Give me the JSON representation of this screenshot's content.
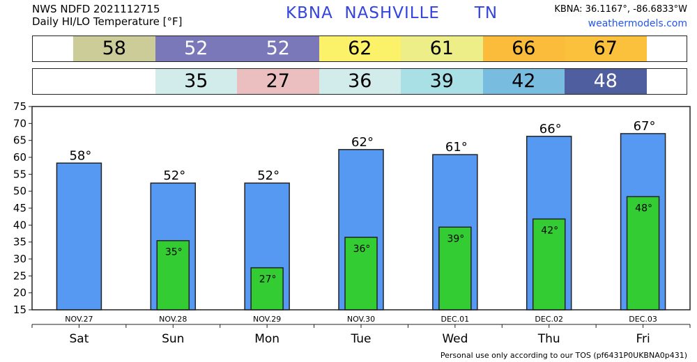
{
  "header": {
    "line1": "NWS NDFD 2021112715",
    "line2": "Daily HI/LO Temperature [°F]",
    "station": "KBNA  NASHVILLE      TN",
    "coords": "KBNA: 36.1167°, -86.6833°W",
    "site": "weathermodels.com"
  },
  "hi_strip": [
    {
      "value": "58",
      "color": "#cccc99"
    },
    {
      "value": "52",
      "color": "#7a78b8"
    },
    {
      "value": "52",
      "color": "#7a78b8"
    },
    {
      "value": "62",
      "color": "#fbf26a"
    },
    {
      "value": "61",
      "color": "#eeee88"
    },
    {
      "value": "66",
      "color": "#fbbc3c"
    },
    {
      "value": "67",
      "color": "#fbc03c"
    }
  ],
  "lo_strip": [
    {
      "value": "",
      "color": "#ffffff"
    },
    {
      "value": "35",
      "color": "#d2ecec"
    },
    {
      "value": "27",
      "color": "#ebbfbf"
    },
    {
      "value": "36",
      "color": "#d2ecec"
    },
    {
      "value": "39",
      "color": "#a8e0e6"
    },
    {
      "value": "42",
      "color": "#78bde0"
    },
    {
      "value": "48",
      "color": "#4f5e9e"
    }
  ],
  "chart_data": {
    "type": "bar",
    "categories": [
      "Sat",
      "Sun",
      "Mon",
      "Tue",
      "Wed",
      "Thu",
      "Fri"
    ],
    "dates": [
      "NOV.27",
      "NOV.28",
      "NOV.29",
      "NOV.30",
      "DEC.01",
      "DEC.02",
      "DEC.03"
    ],
    "series": [
      {
        "values": [
          58.3,
          52.4,
          52.4,
          62.3,
          60.8,
          66.2,
          67.0
        ],
        "labels": [
          "58°",
          "52°",
          "52°",
          "62°",
          "61°",
          "66°",
          "67°"
        ],
        "color": "#5599f2"
      },
      {
        "values": [
          null,
          35.4,
          27.4,
          36.4,
          39.4,
          41.8,
          48.4
        ],
        "labels": [
          "",
          "35°",
          "27°",
          "36°",
          "39°",
          "42°",
          "48°"
        ],
        "color": "#33cc33"
      }
    ],
    "ylim": [
      15,
      75
    ],
    "yticks": [
      "15",
      "20",
      "25",
      "30",
      "35",
      "40",
      "45",
      "50",
      "55",
      "60",
      "65",
      "70",
      "75"
    ],
    "grid": false
  },
  "footer": "Personal use only according to our TOS (pf6431P0UKBNA0p431)"
}
